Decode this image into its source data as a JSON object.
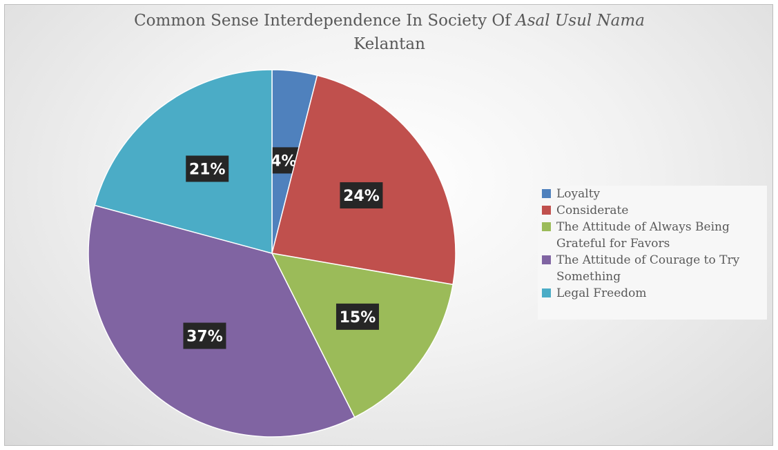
{
  "chart_data": {
    "type": "pie",
    "title": "Common Sense Interdependence In Society Of",
    "title_italic": "Asal Usul Nama",
    "title_line2_italic": "Kelantan",
    "categories": [
      "Loyalty",
      "Considerate",
      "The Attitude of Always Being Grateful for Favors",
      "The Attitude of Courage to Try Something",
      "Legal Freedom"
    ],
    "legend_lines": [
      [
        "Loyalty"
      ],
      [
        "Considerate"
      ],
      [
        "The Attitude of Always Being",
        "Grateful for Favors"
      ],
      [
        "The Attitude of Courage to Try",
        "Something"
      ],
      [
        "Legal Freedom"
      ]
    ],
    "values": [
      4,
      24,
      15,
      37,
      21
    ],
    "data_labels": [
      "4%",
      "24%",
      "15%",
      "37%",
      "21%"
    ],
    "colors": [
      "#4f81bd",
      "#c0504d",
      "#9bbb59",
      "#8064a2",
      "#4bacc6"
    ],
    "legend_position": "right",
    "label_style": {
      "background": "#262626",
      "color": "#ffffff"
    }
  }
}
